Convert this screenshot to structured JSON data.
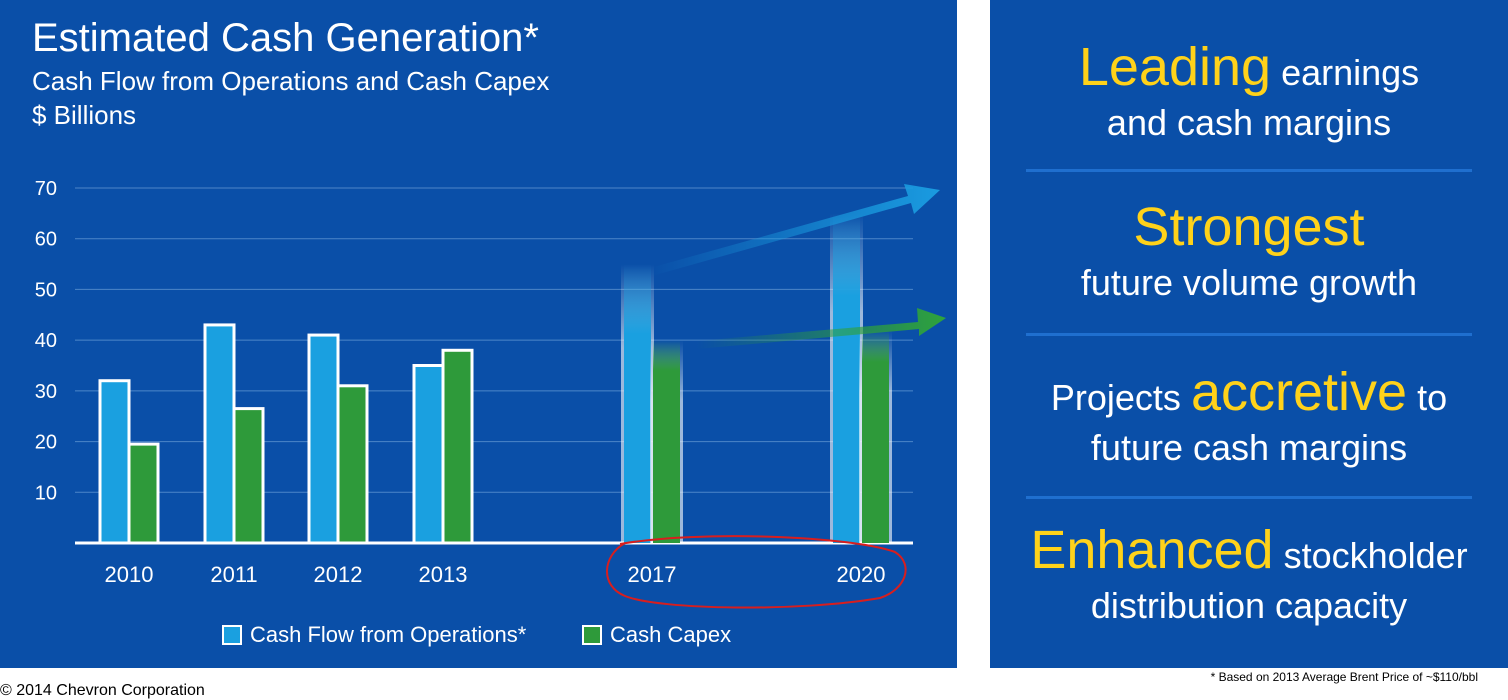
{
  "header": {
    "title": "Estimated Cash Generation*",
    "subtitle": "Cash Flow from Operations and Cash Capex",
    "unit": "$ Billions"
  },
  "legend": {
    "cfo": "Cash Flow from Operations*",
    "capex": "Cash Capex"
  },
  "colors": {
    "cfo": "#1aa0e0",
    "capex": "#2e9a3a",
    "background": "#0a4fa8",
    "accent": "#ffd21a",
    "annotation": "#d81e1e"
  },
  "chart_data": {
    "type": "bar",
    "categories": [
      "2010",
      "2011",
      "2012",
      "2013",
      "2017",
      "2020"
    ],
    "series": [
      {
        "name": "Cash Flow from Operations*",
        "values": [
          32,
          43,
          41,
          35,
          55,
          65
        ]
      },
      {
        "name": "Cash Capex",
        "values": [
          19.5,
          26.5,
          31,
          38,
          40,
          42
        ]
      }
    ],
    "projected_categories": [
      "2017",
      "2020"
    ],
    "yticks": [
      10,
      20,
      30,
      40,
      50,
      60,
      70
    ],
    "ylim": [
      0,
      70
    ],
    "grid": true,
    "legend_position": "bottom",
    "annotations": [
      "upward trend arrows on projected years",
      "red hand-drawn circle around 2017 and 2020 labels"
    ]
  },
  "side": {
    "b1_hl": "Leading",
    "b1_rest": "earnings",
    "b1_line2": "and cash margins",
    "b2_hl": "Strongest",
    "b2_line2": "future volume growth",
    "b3_pre": "Projects",
    "b3_hl": "accretive",
    "b3_post": "to",
    "b3_line2": "future cash margins",
    "b4_hl": "Enhanced",
    "b4_rest": "stockholder",
    "b4_line2": "distribution capacity"
  },
  "footnote": "* Based on 2013 Average Brent Price of ~$110/bbl",
  "copyright": "© 2014 Chevron Corporation"
}
